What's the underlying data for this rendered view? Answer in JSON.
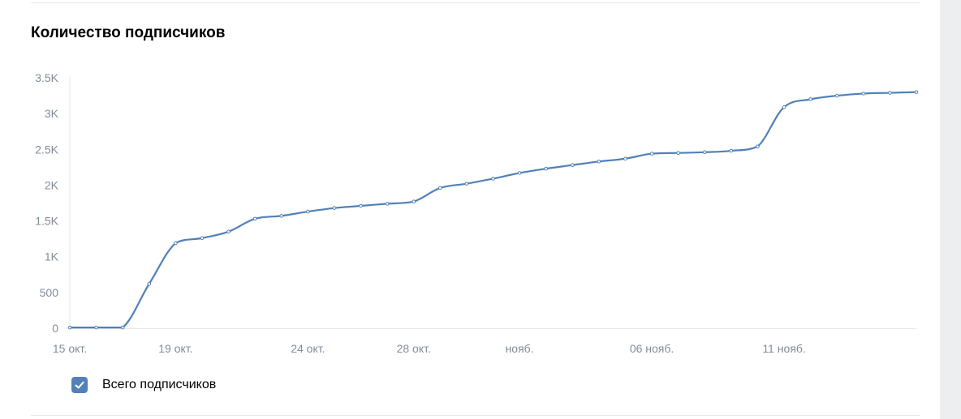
{
  "title": "Количество подписчиков",
  "legend": {
    "label": "Всего подписчиков",
    "checked": true
  },
  "colors": {
    "series": "#5181b8",
    "axis_text": "#818c99",
    "grid": "#e7e8ec"
  },
  "chart_data": {
    "type": "line",
    "ylim": [
      0,
      3500
    ],
    "y_ticks": [
      "0",
      "500",
      "1K",
      "1.5K",
      "2K",
      "2.5K",
      "3K",
      "3.5K"
    ],
    "x_ticks": [
      {
        "label": "15 окт.",
        "day": 0
      },
      {
        "label": "19 окт.",
        "day": 4
      },
      {
        "label": "24 окт.",
        "day": 9
      },
      {
        "label": "28 окт.",
        "day": 13
      },
      {
        "label": "нояб.",
        "day": 17
      },
      {
        "label": "06 нояб.",
        "day": 22
      },
      {
        "label": "11 нояб.",
        "day": 27
      }
    ],
    "grid": false,
    "legend_position": "bottom-left",
    "series": [
      {
        "name": "Всего подписчиков",
        "values": [
          10,
          10,
          10,
          620,
          1190,
          1260,
          1350,
          1530,
          1570,
          1630,
          1680,
          1710,
          1740,
          1770,
          1960,
          2020,
          2090,
          2170,
          2230,
          2280,
          2330,
          2370,
          2440,
          2450,
          2460,
          2480,
          2540,
          3090,
          3200,
          3250,
          3280,
          3290,
          3300
        ]
      }
    ]
  }
}
